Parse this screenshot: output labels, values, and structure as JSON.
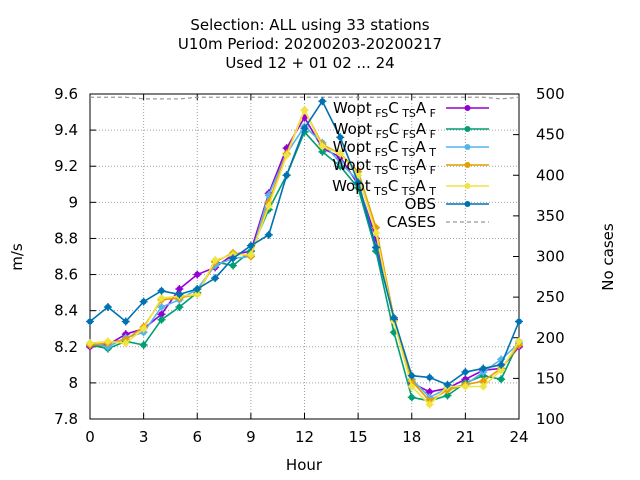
{
  "chart_data": {
    "type": "line",
    "title": [
      "Selection: ALL using    33 stations",
      "U10m   Period: 20200203-20200217",
      "Used  12 + 01 02 ... 24"
    ],
    "xlabel": "Hour",
    "ylabel": "m/s",
    "y2label": "No cases",
    "xlim": [
      0,
      24
    ],
    "ylim": [
      7.8,
      9.6
    ],
    "y2lim": [
      100,
      500
    ],
    "xticks": [
      0,
      3,
      6,
      9,
      12,
      15,
      18,
      21,
      24
    ],
    "yticks": [
      "7.8",
      "8",
      "8.2",
      "8.4",
      "8.6",
      "8.8",
      "9",
      "9.2",
      "9.4",
      "9.6"
    ],
    "y2ticks": [
      100,
      150,
      200,
      250,
      300,
      350,
      400,
      450,
      500
    ],
    "grid": true,
    "legend_position": "top-right",
    "x": [
      0,
      1,
      2,
      3,
      4,
      5,
      6,
      7,
      8,
      9,
      10,
      11,
      12,
      13,
      14,
      15,
      16,
      17,
      18,
      19,
      20,
      21,
      22,
      23,
      24
    ],
    "series": [
      {
        "base": "Wopt",
        "sub1": "FS",
        "sub2": "TS",
        "sub3": "F",
        "color": "#9400d3",
        "values": [
          8.2,
          8.21,
          8.27,
          8.3,
          8.38,
          8.52,
          8.6,
          8.64,
          8.71,
          8.73,
          9.05,
          9.3,
          9.47,
          9.3,
          9.25,
          9.1,
          8.8,
          8.35,
          8.0,
          7.95,
          7.97,
          8.02,
          8.07,
          8.08,
          8.2
        ]
      },
      {
        "base": "Wopt",
        "sub1": "FS",
        "sub2": "FS",
        "sub3": "F",
        "color": "#009e73",
        "values": [
          8.21,
          8.19,
          8.23,
          8.21,
          8.35,
          8.42,
          8.5,
          8.67,
          8.65,
          8.73,
          8.96,
          9.15,
          9.39,
          9.28,
          9.2,
          9.08,
          8.73,
          8.28,
          7.92,
          7.9,
          7.93,
          8.0,
          8.04,
          8.02,
          8.23
        ]
      },
      {
        "base": "Wopt",
        "sub1": "FS",
        "sub2": "TS",
        "sub3": "T",
        "color": "#56b4e9",
        "values": [
          8.22,
          8.2,
          8.25,
          8.28,
          8.42,
          8.46,
          8.52,
          8.65,
          8.69,
          8.7,
          9.04,
          9.27,
          9.42,
          9.33,
          9.22,
          9.12,
          8.75,
          8.36,
          8.02,
          7.92,
          7.97,
          7.99,
          8.06,
          8.13,
          8.22
        ]
      },
      {
        "base": "Wopt",
        "sub1": "TS",
        "sub2": "TS",
        "sub3": "F",
        "color": "#e69f00",
        "values": [
          8.21,
          8.22,
          8.24,
          8.31,
          8.46,
          8.47,
          8.49,
          8.67,
          8.72,
          8.7,
          9.0,
          9.27,
          9.51,
          9.32,
          9.27,
          9.17,
          8.86,
          8.36,
          8.01,
          7.9,
          7.96,
          7.99,
          8.01,
          8.08,
          8.21
        ]
      },
      {
        "base": "Wopt",
        "sub1": "TS",
        "sub2": "TS",
        "sub3": "T",
        "color": "#f0e442",
        "values": [
          8.22,
          8.23,
          8.22,
          8.3,
          8.47,
          8.48,
          8.49,
          8.68,
          8.71,
          8.71,
          8.98,
          9.26,
          9.51,
          9.31,
          9.27,
          9.15,
          8.83,
          8.34,
          7.98,
          7.88,
          7.98,
          7.98,
          7.98,
          8.07,
          8.23
        ]
      },
      {
        "base": "OBS",
        "color": "#0072b2",
        "values": [
          8.34,
          8.42,
          8.34,
          8.45,
          8.51,
          8.49,
          8.52,
          8.58,
          8.69,
          8.76,
          8.82,
          9.15,
          9.41,
          9.56,
          9.36,
          9.11,
          8.75,
          8.36,
          8.04,
          8.03,
          7.99,
          8.06,
          8.08,
          8.1,
          8.34
        ]
      }
    ],
    "cases": {
      "name": "CASES",
      "color": "#999999",
      "values": [
        496,
        496,
        496,
        494,
        494,
        494,
        496,
        496,
        496,
        496,
        496,
        496,
        496,
        496,
        496,
        496,
        496,
        496,
        496,
        496,
        496,
        496,
        496,
        494,
        496
      ]
    }
  }
}
